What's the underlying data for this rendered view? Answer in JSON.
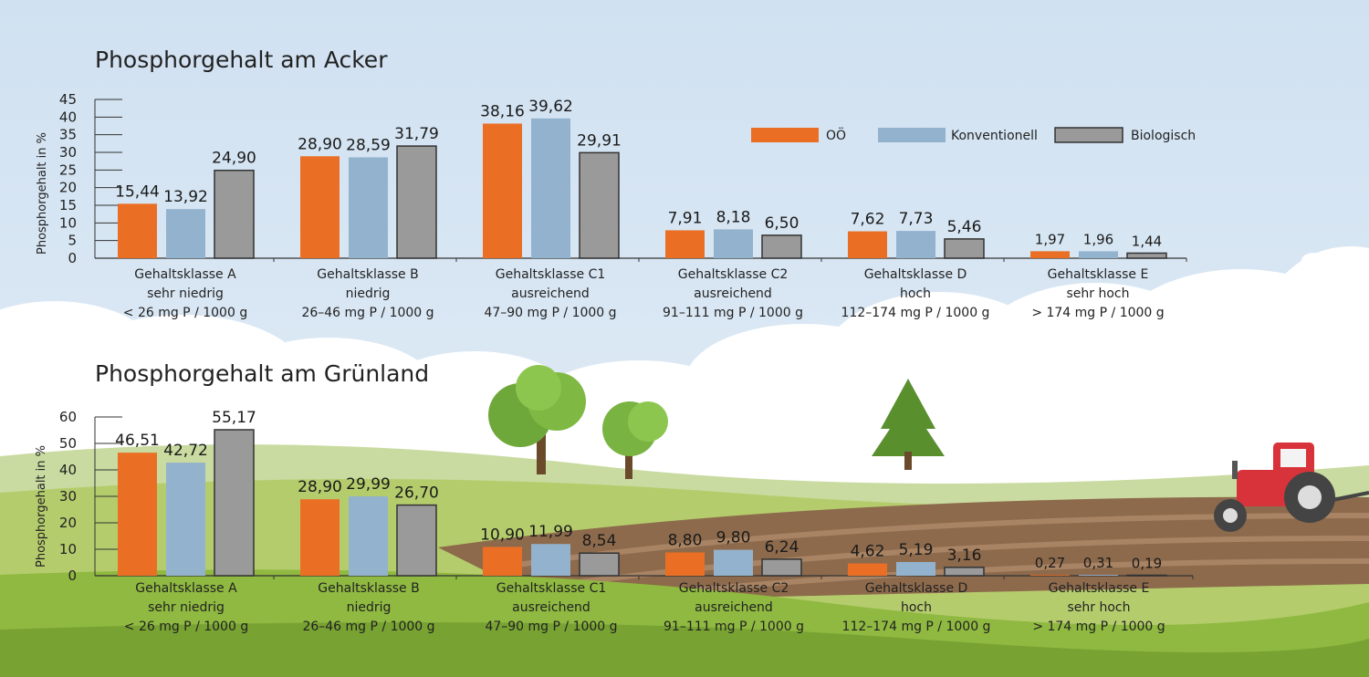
{
  "colors": {
    "OOE": "#ea6f25",
    "Konventionell": "#93b2cd",
    "Biologisch": "#9a9a9a",
    "bar_outline": "#333333"
  },
  "legend": [
    "OÖ",
    "Konventionell",
    "Biologisch"
  ],
  "chart_data": [
    {
      "type": "bar",
      "title": "Phosphorgehalt am Acker",
      "ylabel": "Phosphorgehalt in %",
      "yticks": [
        0,
        5,
        10,
        15,
        20,
        25,
        30,
        35,
        40,
        45
      ],
      "ylim": [
        0,
        45
      ],
      "categories": [
        [
          "Gehaltsklasse A",
          "sehr niedrig",
          "< 26 mg P / 1000 g"
        ],
        [
          "Gehaltsklasse B",
          "niedrig",
          "26–46 mg P / 1000 g"
        ],
        [
          "Gehaltsklasse C1",
          "ausreichend",
          "47–90 mg P / 1000 g"
        ],
        [
          "Gehaltsklasse C2",
          "ausreichend",
          "91–111 mg P / 1000 g"
        ],
        [
          "Gehaltsklasse D",
          "hoch",
          "112–174 mg P / 1000 g"
        ],
        [
          "Gehaltsklasse E",
          "sehr hoch",
          "> 174 mg P / 1000 g"
        ]
      ],
      "series": [
        {
          "name": "OÖ",
          "values": [
            15.44,
            28.9,
            38.16,
            7.91,
            7.62,
            1.97
          ],
          "labels": [
            "15,44",
            "28,90",
            "38,16",
            "7,91",
            "7,62",
            "1,97"
          ]
        },
        {
          "name": "Konventionell",
          "values": [
            13.92,
            28.59,
            39.62,
            8.18,
            7.73,
            1.96
          ],
          "labels": [
            "13,92",
            "28,59",
            "39,62",
            "8,18",
            "7,73",
            "1,96"
          ]
        },
        {
          "name": "Biologisch",
          "values": [
            24.9,
            31.79,
            29.91,
            6.5,
            5.46,
            1.44
          ],
          "labels": [
            "24,90",
            "31,79",
            "29,91",
            "6,50",
            "5,46",
            "1,44"
          ]
        }
      ],
      "legend_position": "top-right"
    },
    {
      "type": "bar",
      "title": "Phosphorgehalt am Grünland",
      "ylabel": "Phosphorgehalt in %",
      "yticks": [
        0,
        10,
        20,
        30,
        40,
        50,
        60
      ],
      "ylim": [
        0,
        60
      ],
      "categories": [
        [
          "Gehaltsklasse A",
          "sehr niedrig",
          "< 26 mg P / 1000 g"
        ],
        [
          "Gehaltsklasse B",
          "niedrig",
          "26–46 mg P / 1000 g"
        ],
        [
          "Gehaltsklasse C1",
          "ausreichend",
          "47–90 mg P / 1000 g"
        ],
        [
          "Gehaltsklasse C2",
          "ausreichend",
          "91–111 mg P / 1000 g"
        ],
        [
          "Gehaltsklasse D",
          "hoch",
          "112–174 mg P / 1000 g"
        ],
        [
          "Gehaltsklasse E",
          "sehr hoch",
          "> 174 mg P / 1000 g"
        ]
      ],
      "series": [
        {
          "name": "OÖ",
          "values": [
            46.51,
            28.9,
            10.9,
            8.8,
            4.62,
            0.27
          ],
          "labels": [
            "46,51",
            "28,90",
            "10,90",
            "8,80",
            "4,62",
            "0,27"
          ]
        },
        {
          "name": "Konventionell",
          "values": [
            42.72,
            29.99,
            11.99,
            9.8,
            5.19,
            0.31
          ],
          "labels": [
            "42,72",
            "29,99",
            "11,99",
            "9,80",
            "5,19",
            "0,31"
          ]
        },
        {
          "name": "Biologisch",
          "values": [
            55.17,
            26.7,
            8.54,
            6.24,
            3.16,
            0.19
          ],
          "labels": [
            "55,17",
            "26,70",
            "8,54",
            "6,24",
            "3,16",
            "0,19"
          ]
        }
      ]
    }
  ]
}
